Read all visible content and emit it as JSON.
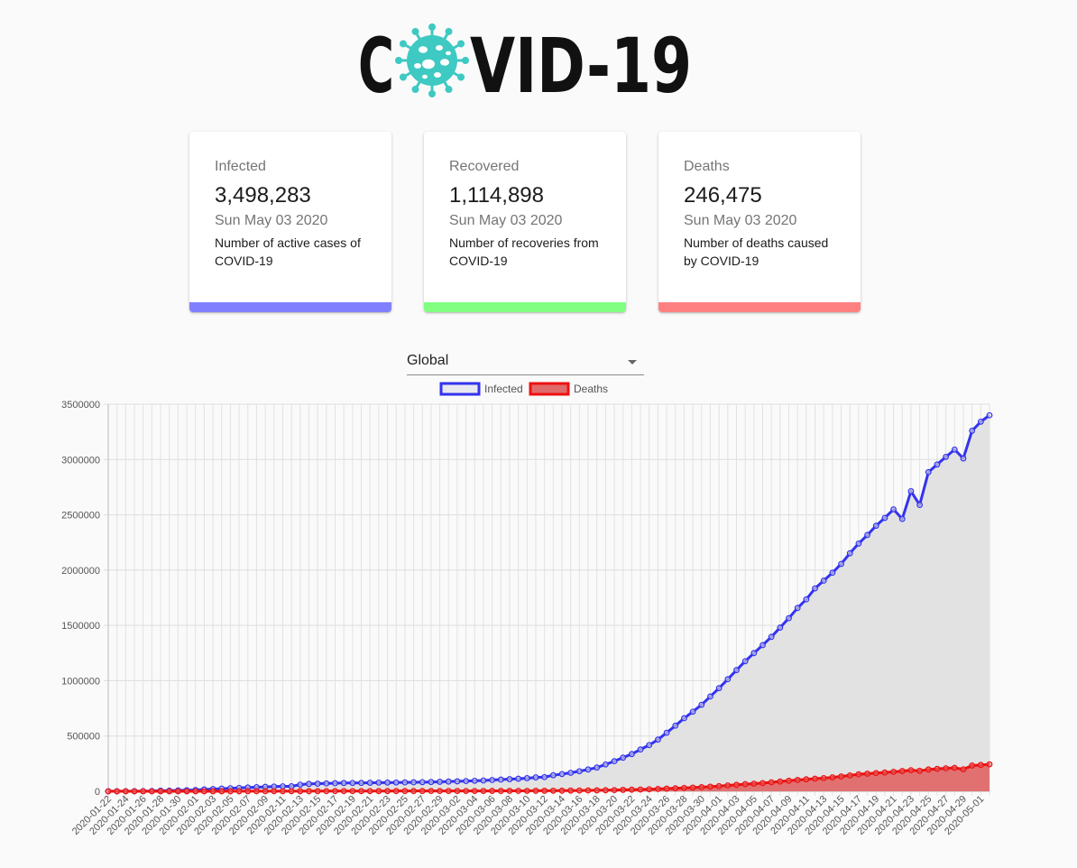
{
  "logo": {
    "text_before": "C",
    "text_after": "VID-19",
    "icon": "virus-icon",
    "color": "#111111",
    "icon_color": "#3ec9c3"
  },
  "cards": [
    {
      "title": "Infected",
      "value": "3,498,283",
      "date": "Sun May 03 2020",
      "description": "Number of active cases of COVID-19",
      "color": "#8080ff"
    },
    {
      "title": "Recovered",
      "value": "1,114,898",
      "date": "Sun May 03 2020",
      "description": "Number of recoveries from COVID-19",
      "color": "#80ff80"
    },
    {
      "title": "Deaths",
      "value": "246,475",
      "date": "Sun May 03 2020",
      "description": "Number of deaths caused by COVID-19",
      "color": "#ff8080"
    }
  ],
  "country_select": {
    "value": "Global"
  },
  "chart_data": {
    "type": "line",
    "start_date": "2020-01-22",
    "end_date": "2020-05-02",
    "x_tick_labels": [
      "2020-01-22",
      "2020-01-24",
      "2020-01-26",
      "2020-01-28",
      "2020-01-30",
      "2020-02-01",
      "2020-02-03",
      "2020-02-05",
      "2020-02-07",
      "2020-02-09",
      "2020-02-11",
      "2020-02-13",
      "2020-02-15",
      "2020-02-17",
      "2020-02-19",
      "2020-02-21",
      "2020-02-23",
      "2020-02-25",
      "2020-02-27",
      "2020-02-29",
      "2020-03-02",
      "2020-03-04",
      "2020-03-06",
      "2020-03-08",
      "2020-03-10",
      "2020-03-12",
      "2020-03-14",
      "2020-03-16",
      "2020-03-18",
      "2020-03-20",
      "2020-03-22",
      "2020-03-24",
      "2020-03-26",
      "2020-03-28",
      "2020-03-30",
      "2020-04-01",
      "2020-04-03",
      "2020-04-05",
      "2020-04-07",
      "2020-04-09",
      "2020-04-11",
      "2020-04-13",
      "2020-04-15",
      "2020-04-17",
      "2020-04-19",
      "2020-04-21",
      "2020-04-23",
      "2020-04-25",
      "2020-04-27",
      "2020-04-29",
      "2020-05-01"
    ],
    "y_ticks": [
      0,
      500000,
      1000000,
      1500000,
      2000000,
      2500000,
      3000000,
      3500000
    ],
    "ylim": [
      0,
      3500000
    ],
    "legend_position": "top",
    "grid": true,
    "series": [
      {
        "name": "Infected",
        "stroke": "#3333ee",
        "fill": "#e0e0e0",
        "legend_fill": "#e8e8f0",
        "values": [
          555,
          654,
          941,
          1434,
          2118,
          2927,
          5578,
          6166,
          8234,
          9927,
          12038,
          16787,
          19881,
          23892,
          27635,
          30794,
          34391,
          37120,
          40150,
          42762,
          44802,
          45221,
          60368,
          66885,
          69030,
          71224,
          73258,
          75136,
          75639,
          76197,
          76819,
          78572,
          78958,
          79561,
          80406,
          81388,
          82746,
          84112,
          86011,
          88369,
          90306,
          92840,
          95120,
          97886,
          101801,
          105847,
          109821,
          113590,
          118620,
          125875,
          128343,
          145193,
          156097,
          167449,
          181546,
          197168,
          214915,
          242713,
          272167,
          304528,
          336953,
          378235,
          418045,
          467653,
          529591,
          593291,
          660706,
          720117,
          782365,
          857487,
          932605,
          1013466,
          1095917,
          1176060,
          1249754,
          1321481,
          1396476,
          1480200,
          1565278,
          1657526,
          1735650,
          1834721,
          1904838,
          1976191,
          2056054,
          2152437,
          2240190,
          2317759,
          2401379,
          2472259,
          2549294,
          2463000,
          2713000,
          2590000,
          2886000,
          2955000,
          3024000,
          3090000,
          3010000,
          3260000,
          3342000,
          3400000
        ]
      },
      {
        "name": "Deaths",
        "stroke": "#ee1111",
        "fill": "#e06a6a",
        "legend_fill": "#e06a6a",
        "values": [
          17,
          18,
          26,
          42,
          56,
          82,
          131,
          133,
          171,
          213,
          259,
          362,
          426,
          492,
          564,
          634,
          719,
          806,
          906,
          1013,
          1113,
          1118,
          1371,
          1523,
          1666,
          1770,
          1868,
          2007,
          2122,
          2247,
          2251,
          2458,
          2469,
          2629,
          2708,
          2770,
          2814,
          2872,
          2941,
          2996,
          3085,
          3160,
          3254,
          3348,
          3460,
          3558,
          3803,
          3996,
          4262,
          4615,
          4720,
          5404,
          5819,
          6440,
          7126,
          7905,
          8733,
          9867,
          11299,
          12973,
          14651,
          16505,
          18625,
          21181,
          23970,
          27198,
          30652,
          33925,
          37582,
          42107,
          46809,
          52983,
          58787,
          64606,
          69374,
          74565,
          81865,
          88338,
          95455,
          102525,
          108503,
          114090,
          119482,
          125984,
          134177,
          143800,
          153822,
          159510,
          165044,
          169986,
          176583,
          183027,
          190858,
          185000,
          197245,
          203000,
          208000,
          212000,
          199000,
          233000,
          238000,
          244000
        ]
      }
    ]
  }
}
